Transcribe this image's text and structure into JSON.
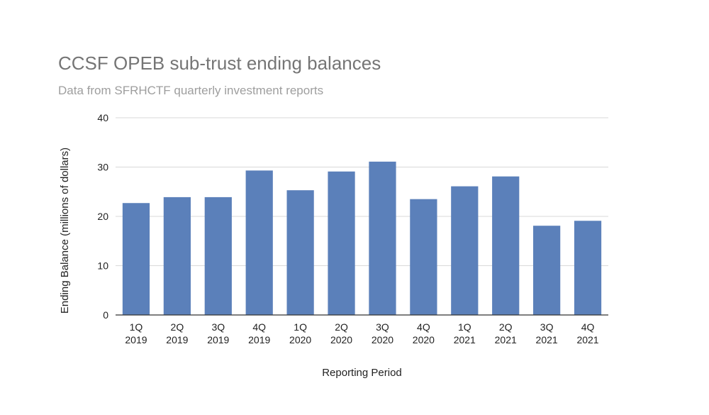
{
  "chart_data": {
    "type": "bar",
    "title": "CCSF OPEB sub-trust ending balances",
    "subtitle": "Data from SFRHCTF quarterly investment reports",
    "xlabel": "Reporting Period",
    "ylabel": "Ending Balance (millions of dollars)",
    "categories": [
      [
        "1Q",
        "2019"
      ],
      [
        "2Q",
        "2019"
      ],
      [
        "3Q",
        "2019"
      ],
      [
        "4Q",
        "2019"
      ],
      [
        "1Q",
        "2020"
      ],
      [
        "2Q",
        "2020"
      ],
      [
        "3Q",
        "2020"
      ],
      [
        "4Q",
        "2020"
      ],
      [
        "1Q",
        "2021"
      ],
      [
        "2Q",
        "2021"
      ],
      [
        "3Q",
        "2021"
      ],
      [
        "4Q",
        "2021"
      ]
    ],
    "values": [
      22.7,
      23.9,
      23.9,
      29.3,
      25.3,
      29.1,
      31.1,
      23.5,
      26.1,
      28.1,
      18.1,
      19.1
    ],
    "ylim": [
      0,
      40
    ],
    "yticks": [
      0,
      10,
      20,
      30,
      40
    ],
    "grid": true,
    "bar_color": "#5b80ba",
    "grid_color": "#d9d9d9",
    "axis_color": "#333333"
  }
}
